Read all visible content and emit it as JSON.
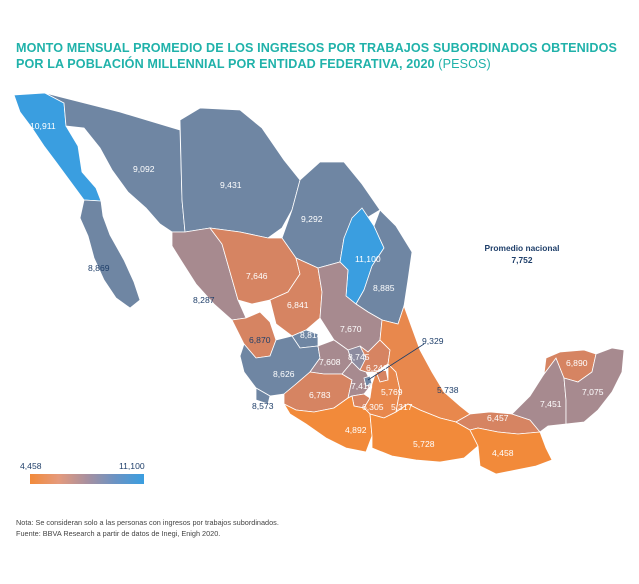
{
  "title": {
    "main": "MONTO MENSUAL PROMEDIO DE LOS INGRESOS POR TRABAJOS SUBORDINADOS OBTENIDOS POR LA POBLACIÓN MILLENNIAL POR ENTIDAD FEDERATIVA, 2020",
    "unit": "(PESOS)"
  },
  "national_average": {
    "label": "Promedio nacional",
    "value": "7,752"
  },
  "legend": {
    "min": "4,458",
    "max": "11,100",
    "color_min": "#f28a3a",
    "color_max": "#3a9ee0"
  },
  "colors": {
    "blue_high": "#3a9ee0",
    "slate": "#6f86a3",
    "slate_mid": "#8d8ca0",
    "mauve": "#a78a8f",
    "salmon": "#d68462",
    "orange_low": "#f28a3a",
    "orange_mid": "#e8884d"
  },
  "states": [
    {
      "key": "bc",
      "value": "10,911"
    },
    {
      "key": "son",
      "value": "9,092"
    },
    {
      "key": "chih",
      "value": "9,431"
    },
    {
      "key": "coah",
      "value": "9,292"
    },
    {
      "key": "nl",
      "value": "11,100"
    },
    {
      "key": "bcs",
      "value": "8,869"
    },
    {
      "key": "sin",
      "value": "8,287"
    },
    {
      "key": "dgo",
      "value": "7,646"
    },
    {
      "key": "tamps",
      "value": "8,885"
    },
    {
      "key": "zac",
      "value": "6,841"
    },
    {
      "key": "nay",
      "value": "6,870"
    },
    {
      "key": "ags",
      "value": "8,818"
    },
    {
      "key": "slp",
      "value": "7,670"
    },
    {
      "key": "jal",
      "value": "8,626"
    },
    {
      "key": "gto",
      "value": "7,608"
    },
    {
      "key": "qro",
      "value": "8,745"
    },
    {
      "key": "hgo",
      "value": "6,241"
    },
    {
      "key": "cdmx",
      "value": "9,329"
    },
    {
      "key": "col",
      "value": "8,573"
    },
    {
      "key": "mich",
      "value": "6,783"
    },
    {
      "key": "mex",
      "value": "7,416"
    },
    {
      "key": "mor",
      "value": "6,305"
    },
    {
      "key": "tlax",
      "value": "5,769"
    },
    {
      "key": "pue",
      "value": "5,317"
    },
    {
      "key": "ver",
      "value": "5,738"
    },
    {
      "key": "gro",
      "value": "4,892"
    },
    {
      "key": "oax",
      "value": "5,728"
    },
    {
      "key": "tab",
      "value": "6,457"
    },
    {
      "key": "chis",
      "value": "4,458"
    },
    {
      "key": "camp",
      "value": "7,451"
    },
    {
      "key": "yuc",
      "value": "6,890"
    },
    {
      "key": "qroo",
      "value": "7,075"
    }
  ],
  "notes": {
    "note": "Nota: Se consideran solo a las personas con ingresos por trabajos subordinados.",
    "source": "Fuente: BBVA Research a partir de datos de Inegi, Enigh 2020."
  }
}
